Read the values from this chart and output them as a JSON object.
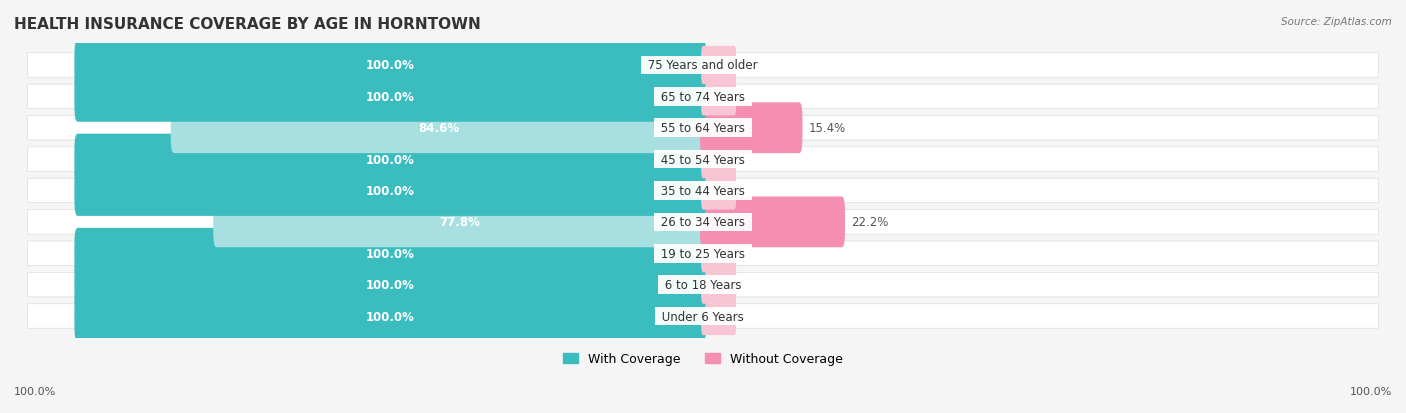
{
  "title": "HEALTH INSURANCE COVERAGE BY AGE IN HORNTOWN",
  "source": "Source: ZipAtlas.com",
  "categories": [
    "Under 6 Years",
    "6 to 18 Years",
    "19 to 25 Years",
    "26 to 34 Years",
    "35 to 44 Years",
    "45 to 54 Years",
    "55 to 64 Years",
    "65 to 74 Years",
    "75 Years and older"
  ],
  "with_coverage": [
    100.0,
    100.0,
    100.0,
    77.8,
    100.0,
    100.0,
    84.6,
    100.0,
    100.0
  ],
  "without_coverage": [
    0.0,
    0.0,
    0.0,
    22.2,
    0.0,
    0.0,
    15.4,
    0.0,
    0.0
  ],
  "color_with": "#3bbcbf",
  "color_without": "#f48fb1",
  "color_with_light": "#a8dfe0",
  "color_without_light": "#f9c4d4",
  "bg_color": "#f5f5f5",
  "bar_bg": "#e8e8e8",
  "title_fontsize": 11,
  "label_fontsize": 8.5,
  "legend_fontsize": 9,
  "axis_label_left": "-100.0%",
  "axis_label_right": "100.0%",
  "left_axis_value": "100.0%",
  "right_axis_value": "100.0%"
}
